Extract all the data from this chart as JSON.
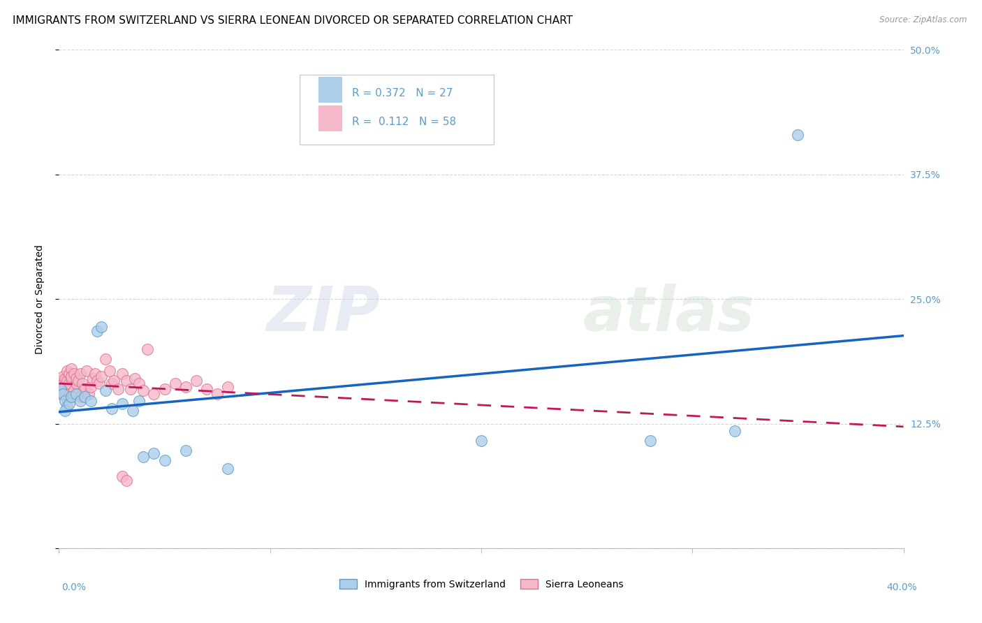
{
  "title": "IMMIGRANTS FROM SWITZERLAND VS SIERRA LEONEAN DIVORCED OR SEPARATED CORRELATION CHART",
  "source": "Source: ZipAtlas.com",
  "ylabel": "Divorced or Separated",
  "x_min": 0.0,
  "x_max": 0.4,
  "y_min": 0.0,
  "y_max": 0.5,
  "x_ticks": [
    0.0,
    0.1,
    0.2,
    0.3,
    0.4
  ],
  "x_tick_labels": [
    "0.0%",
    "",
    "",
    "",
    "40.0%"
  ],
  "y_ticks": [
    0.0,
    0.125,
    0.25,
    0.375,
    0.5
  ],
  "y_tick_labels_right": [
    "",
    "12.5%",
    "25.0%",
    "37.5%",
    "50.0%"
  ],
  "legend_entries": [
    {
      "label": "Immigrants from Switzerland",
      "color": "#a8c4e0",
      "border": "#7aaed0",
      "R": 0.372,
      "N": 27
    },
    {
      "label": "Sierra Leoneans",
      "color": "#f5b8c8",
      "border": "#e07090",
      "R": 0.112,
      "N": 58
    }
  ],
  "blue_scatter_x": [
    0.001,
    0.002,
    0.003,
    0.004,
    0.003,
    0.005,
    0.006,
    0.008,
    0.01,
    0.012,
    0.015,
    0.018,
    0.02,
    0.022,
    0.025,
    0.03,
    0.035,
    0.038,
    0.04,
    0.045,
    0.05,
    0.06,
    0.08,
    0.2,
    0.28,
    0.32,
    0.35
  ],
  "blue_scatter_y": [
    0.16,
    0.155,
    0.148,
    0.142,
    0.138,
    0.145,
    0.152,
    0.155,
    0.148,
    0.152,
    0.148,
    0.218,
    0.222,
    0.158,
    0.14,
    0.145,
    0.138,
    0.148,
    0.092,
    0.095,
    0.088,
    0.098,
    0.08,
    0.108,
    0.108,
    0.118,
    0.415
  ],
  "pink_scatter_x": [
    0.001,
    0.001,
    0.001,
    0.002,
    0.002,
    0.002,
    0.003,
    0.003,
    0.003,
    0.004,
    0.004,
    0.004,
    0.005,
    0.005,
    0.005,
    0.006,
    0.006,
    0.006,
    0.007,
    0.007,
    0.008,
    0.008,
    0.009,
    0.009,
    0.01,
    0.01,
    0.011,
    0.012,
    0.013,
    0.014,
    0.015,
    0.016,
    0.017,
    0.018,
    0.019,
    0.02,
    0.022,
    0.024,
    0.025,
    0.026,
    0.028,
    0.03,
    0.032,
    0.034,
    0.036,
    0.038,
    0.04,
    0.042,
    0.045,
    0.05,
    0.055,
    0.06,
    0.065,
    0.07,
    0.075,
    0.08,
    0.03,
    0.032
  ],
  "pink_scatter_y": [
    0.16,
    0.168,
    0.155,
    0.165,
    0.158,
    0.172,
    0.17,
    0.162,
    0.155,
    0.15,
    0.168,
    0.178,
    0.175,
    0.16,
    0.165,
    0.17,
    0.18,
    0.172,
    0.158,
    0.175,
    0.165,
    0.17,
    0.168,
    0.155,
    0.152,
    0.175,
    0.165,
    0.16,
    0.178,
    0.155,
    0.162,
    0.17,
    0.175,
    0.168,
    0.165,
    0.172,
    0.19,
    0.178,
    0.165,
    0.168,
    0.16,
    0.175,
    0.168,
    0.16,
    0.17,
    0.165,
    0.158,
    0.2,
    0.155,
    0.16,
    0.165,
    0.162,
    0.168,
    0.16,
    0.155,
    0.162,
    0.072,
    0.068
  ],
  "blue_color": "#aecde8",
  "blue_edge_color": "#5b9dc9",
  "pink_color": "#f5b8c8",
  "pink_edge_color": "#e07090",
  "trend_blue_color": "#1565c0",
  "trend_pink_color": "#c2185b",
  "watermark_zip": "ZIP",
  "watermark_atlas": "atlas",
  "background_color": "#ffffff",
  "grid_color": "#cccccc",
  "title_fontsize": 11,
  "axis_label_fontsize": 10,
  "tick_fontsize": 10,
  "right_tick_color": "#5b9dc9",
  "bottom_tick_color": "#5b9dc9"
}
